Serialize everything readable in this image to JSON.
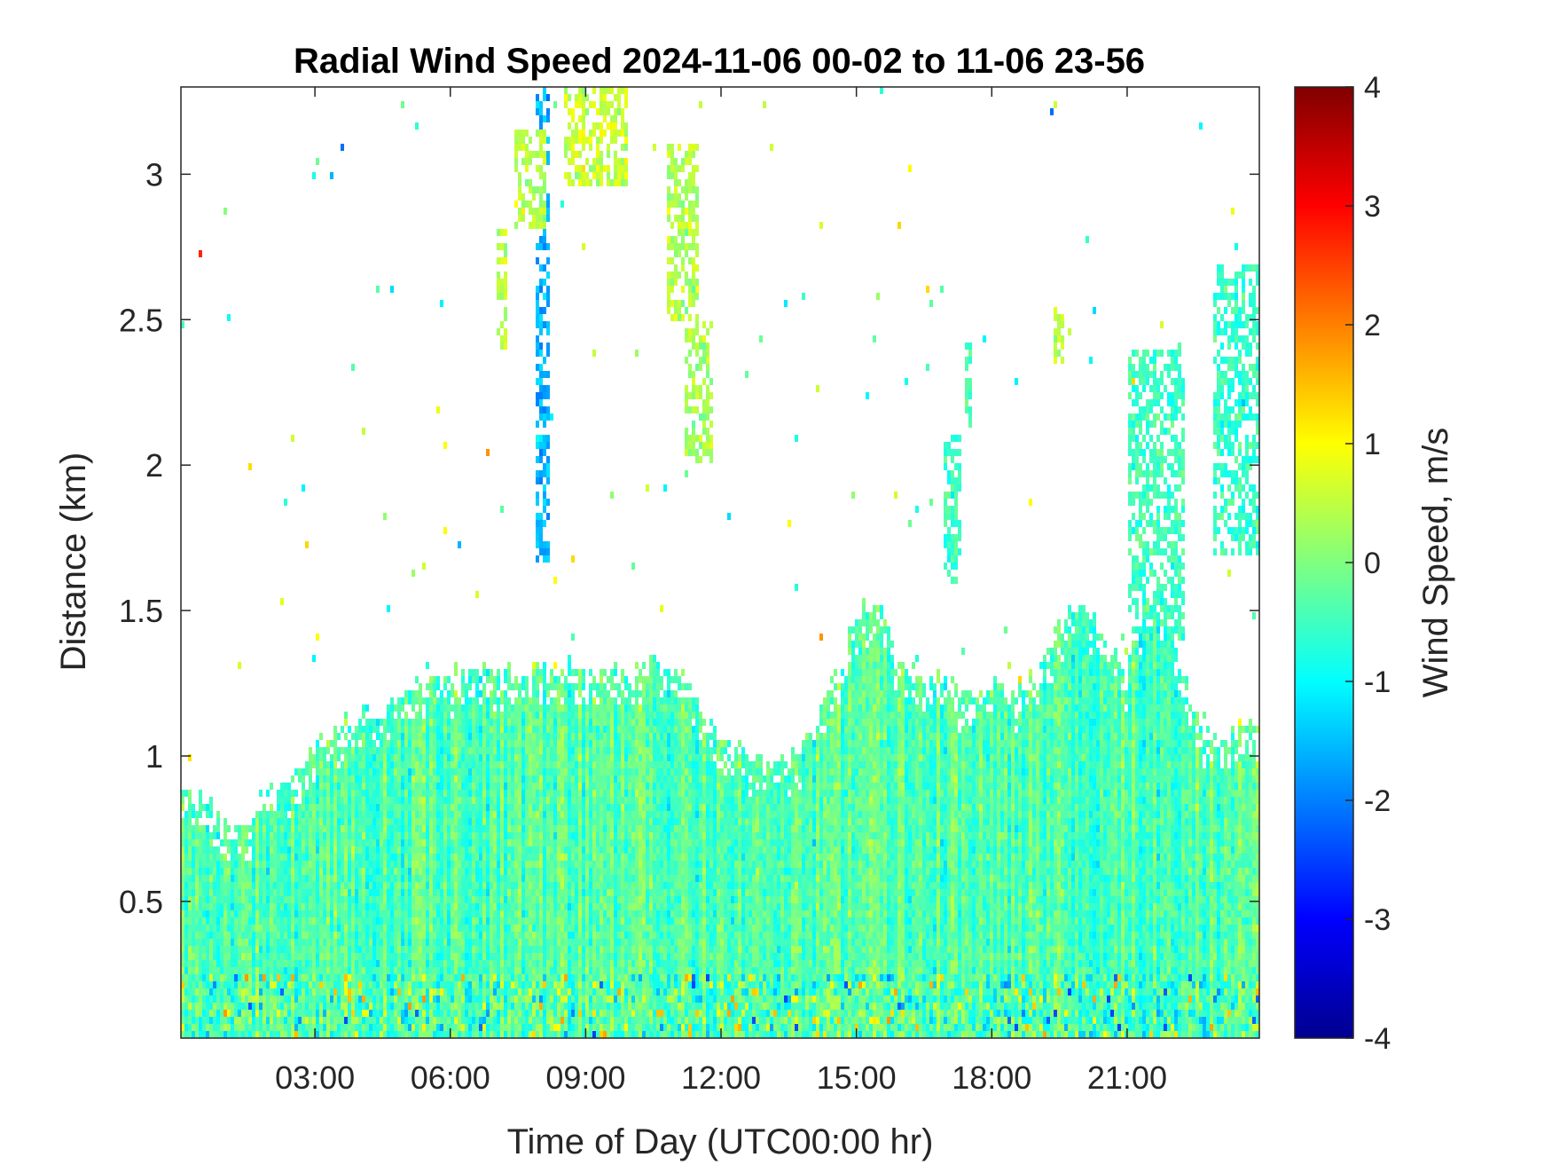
{
  "chart_data": {
    "type": "heatmap",
    "title": "Radial Wind Speed 2024-11-06 00-02 to 11-06 23-56",
    "xlabel": "Time of Day (UTC00:00 hr)",
    "ylabel": "Distance (km)",
    "colorbar_label": "Wind Speed, m/s",
    "colormap": "jet",
    "xlim_hours": [
      0.03,
      23.93
    ],
    "ylim_km": [
      0.03,
      3.3
    ],
    "clim": [
      -4,
      4
    ],
    "x_ticks": [
      {
        "hour": 3,
        "label": "03:00"
      },
      {
        "hour": 6,
        "label": "06:00"
      },
      {
        "hour": 9,
        "label": "09:00"
      },
      {
        "hour": 12,
        "label": "12:00"
      },
      {
        "hour": 15,
        "label": "15:00"
      },
      {
        "hour": 18,
        "label": "18:00"
      },
      {
        "hour": 21,
        "label": "21:00"
      }
    ],
    "y_ticks": [
      {
        "value": 0.5,
        "label": "0.5"
      },
      {
        "value": 1,
        "label": "1"
      },
      {
        "value": 1.5,
        "label": "1.5"
      },
      {
        "value": 2,
        "label": "2"
      },
      {
        "value": 2.5,
        "label": "2.5"
      },
      {
        "value": 3,
        "label": "3"
      }
    ],
    "colorbar_ticks": [
      {
        "value": 4,
        "label": "4"
      },
      {
        "value": 3,
        "label": "3"
      },
      {
        "value": 2,
        "label": "2"
      },
      {
        "value": 1,
        "label": "1"
      },
      {
        "value": 0,
        "label": "0"
      },
      {
        "value": -1,
        "label": "-1"
      },
      {
        "value": -2,
        "label": "-2"
      },
      {
        "value": -3,
        "label": "-3"
      },
      {
        "value": -4,
        "label": "-4"
      }
    ],
    "boundary_layer_top_km": [
      [
        0.03,
        0.88
      ],
      [
        0.8,
        0.82
      ],
      [
        1.0,
        0.76
      ],
      [
        1.4,
        0.76
      ],
      [
        1.8,
        0.85
      ],
      [
        2.5,
        0.92
      ],
      [
        3.0,
        1.02
      ],
      [
        3.5,
        1.1
      ],
      [
        4.0,
        1.15
      ],
      [
        4.5,
        1.15
      ],
      [
        5.0,
        1.2
      ],
      [
        5.5,
        1.28
      ],
      [
        6.0,
        1.28
      ],
      [
        6.5,
        1.32
      ],
      [
        7.0,
        1.28
      ],
      [
        7.5,
        1.3
      ],
      [
        8.0,
        1.28
      ],
      [
        8.5,
        1.32
      ],
      [
        9.0,
        1.3
      ],
      [
        9.5,
        1.28
      ],
      [
        10.0,
        1.3
      ],
      [
        10.5,
        1.33
      ],
      [
        11.0,
        1.3
      ],
      [
        11.5,
        1.2
      ],
      [
        12.0,
        1.05
      ],
      [
        12.5,
        1.02
      ],
      [
        13.0,
        0.97
      ],
      [
        13.5,
        1.0
      ],
      [
        14.0,
        1.08
      ],
      [
        14.5,
        1.25
      ],
      [
        15.0,
        1.48
      ],
      [
        15.5,
        1.55
      ],
      [
        16.0,
        1.32
      ],
      [
        16.5,
        1.26
      ],
      [
        17.0,
        1.28
      ],
      [
        17.5,
        1.2
      ],
      [
        18.0,
        1.25
      ],
      [
        18.5,
        1.2
      ],
      [
        19.0,
        1.3
      ],
      [
        19.5,
        1.45
      ],
      [
        20.0,
        1.55
      ],
      [
        20.5,
        1.4
      ],
      [
        21.0,
        1.3
      ],
      [
        21.5,
        1.55
      ],
      [
        22.0,
        1.4
      ],
      [
        22.5,
        1.15
      ],
      [
        23.0,
        1.05
      ],
      [
        23.5,
        1.1
      ],
      [
        23.93,
        1.1
      ]
    ],
    "elevated_features": [
      {
        "x0": 7.4,
        "x1": 8.1,
        "y0": 2.8,
        "y1": 3.15,
        "mean": 0.4
      },
      {
        "x0": 7.9,
        "x1": 8.2,
        "y0": 1.65,
        "y1": 3.3,
        "mean": -1.6
      },
      {
        "x0": 8.5,
        "x1": 9.9,
        "y0": 2.95,
        "y1": 3.3,
        "mean": 0.6
      },
      {
        "x0": 10.8,
        "x1": 11.5,
        "y0": 2.5,
        "y1": 3.1,
        "mean": 0.4
      },
      {
        "x0": 11.2,
        "x1": 11.8,
        "y0": 2.0,
        "y1": 2.5,
        "mean": 0.3
      },
      {
        "x0": 7.0,
        "x1": 7.3,
        "y0": 2.4,
        "y1": 2.8,
        "mean": 0.5
      },
      {
        "x0": 16.9,
        "x1": 17.3,
        "y0": 1.6,
        "y1": 2.1,
        "mean": -0.5
      },
      {
        "x0": 17.4,
        "x1": 17.6,
        "y0": 2.1,
        "y1": 2.45,
        "mean": -0.5
      },
      {
        "x0": 19.4,
        "x1": 19.6,
        "y0": 2.35,
        "y1": 2.55,
        "mean": 0.5
      },
      {
        "x0": 21.0,
        "x1": 22.3,
        "y0": 1.4,
        "y1": 2.4,
        "mean": -0.5
      },
      {
        "x0": 22.9,
        "x1": 23.93,
        "y0": 1.7,
        "y1": 2.7,
        "mean": -0.6
      },
      {
        "x0": 23.1,
        "x1": 23.5,
        "y0": 1.75,
        "y1": 1.9,
        "mean": 0.4
      }
    ]
  }
}
